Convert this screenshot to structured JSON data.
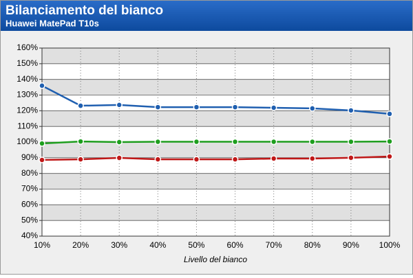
{
  "chart_data": {
    "type": "line",
    "title": "Bilanciamento del bianco",
    "subtitle": "Huawei MatePad T10s",
    "x_label": "Livello del bianco",
    "x": [
      10,
      20,
      30,
      40,
      50,
      60,
      70,
      80,
      90,
      100
    ],
    "xlim": [
      10,
      100
    ],
    "xticks": [
      {
        "value": 10,
        "label": "10%"
      },
      {
        "value": 20,
        "label": "20%"
      },
      {
        "value": 30,
        "label": "30%"
      },
      {
        "value": 40,
        "label": "40%"
      },
      {
        "value": 50,
        "label": "50%"
      },
      {
        "value": 60,
        "label": "60%"
      },
      {
        "value": 70,
        "label": "70%"
      },
      {
        "value": 80,
        "label": "80%"
      },
      {
        "value": 90,
        "label": "90%"
      },
      {
        "value": 100,
        "label": "100%"
      }
    ],
    "ylim": [
      40,
      160
    ],
    "yticks": [
      {
        "value": 40,
        "label": "40%"
      },
      {
        "value": 50,
        "label": "50%"
      },
      {
        "value": 60,
        "label": "60%"
      },
      {
        "value": 70,
        "label": "70%"
      },
      {
        "value": 80,
        "label": "80%"
      },
      {
        "value": 90,
        "label": "90%"
      },
      {
        "value": 100,
        "label": "100%"
      },
      {
        "value": 110,
        "label": "110%"
      },
      {
        "value": 120,
        "label": "120%"
      },
      {
        "value": 130,
        "label": "130%"
      },
      {
        "value": 140,
        "label": "140%"
      },
      {
        "value": 150,
        "label": "150%"
      },
      {
        "value": 160,
        "label": "160%"
      }
    ],
    "grid": true,
    "series": [
      {
        "color": "#1f5fb0",
        "values": [
          136,
          123.2,
          123.7,
          122.3,
          122.3,
          122.3,
          121.9,
          121.5,
          120.2,
          118
        ]
      },
      {
        "color": "#1e9e1e",
        "values": [
          99.1,
          100.4,
          100,
          100.2,
          100.2,
          100.2,
          100.2,
          100.2,
          100.2,
          100.4
        ]
      },
      {
        "color": "#c01818",
        "values": [
          88.6,
          89,
          89.9,
          89,
          89,
          89,
          89.5,
          89.5,
          90,
          90.8
        ]
      }
    ]
  }
}
